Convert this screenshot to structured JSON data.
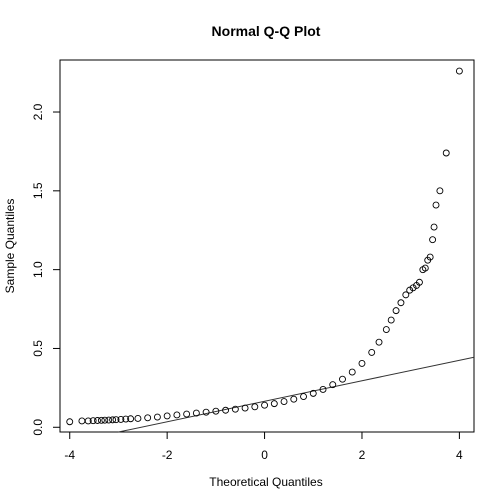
{
  "chart_data": {
    "type": "scatter",
    "title": "Normal Q-Q Plot",
    "xlabel": "Theoretical Quantiles",
    "ylabel": "Sample Quantiles",
    "xlim": [
      -4.2,
      4.3
    ],
    "ylim": [
      -0.03,
      2.33
    ],
    "x_ticks": [
      -4,
      -2,
      0,
      2,
      4
    ],
    "x_tick_labels": [
      "-4",
      "-2",
      "0",
      "2",
      "4"
    ],
    "y_ticks": [
      0.0,
      0.5,
      1.0,
      1.5,
      2.0
    ],
    "y_tick_labels": [
      "0.0",
      "0.5",
      "1.0",
      "1.5",
      "2.0"
    ],
    "grid": false,
    "legend": "none",
    "marker": "open-circle",
    "reference_line": {
      "intercept": 0.165,
      "slope": 0.065
    },
    "points": [
      [
        -4.0,
        0.035
      ],
      [
        -3.75,
        0.04
      ],
      [
        -3.62,
        0.04
      ],
      [
        -3.52,
        0.042
      ],
      [
        -3.43,
        0.043
      ],
      [
        -3.35,
        0.044
      ],
      [
        -3.28,
        0.045
      ],
      [
        -3.2,
        0.046
      ],
      [
        -3.12,
        0.047
      ],
      [
        -3.05,
        0.048
      ],
      [
        -2.95,
        0.05
      ],
      [
        -2.85,
        0.052
      ],
      [
        -2.75,
        0.054
      ],
      [
        -2.6,
        0.056
      ],
      [
        -2.4,
        0.06
      ],
      [
        -2.2,
        0.065
      ],
      [
        -2.0,
        0.072
      ],
      [
        -1.8,
        0.078
      ],
      [
        -1.6,
        0.084
      ],
      [
        -1.4,
        0.09
      ],
      [
        -1.2,
        0.096
      ],
      [
        -1.0,
        0.102
      ],
      [
        -0.8,
        0.108
      ],
      [
        -0.6,
        0.115
      ],
      [
        -0.4,
        0.122
      ],
      [
        -0.2,
        0.13
      ],
      [
        0.0,
        0.14
      ],
      [
        0.2,
        0.15
      ],
      [
        0.4,
        0.163
      ],
      [
        0.6,
        0.178
      ],
      [
        0.8,
        0.195
      ],
      [
        1.0,
        0.215
      ],
      [
        1.2,
        0.24
      ],
      [
        1.4,
        0.27
      ],
      [
        1.6,
        0.305
      ],
      [
        1.8,
        0.35
      ],
      [
        2.0,
        0.405
      ],
      [
        2.2,
        0.475
      ],
      [
        2.35,
        0.54
      ],
      [
        2.5,
        0.62
      ],
      [
        2.6,
        0.68
      ],
      [
        2.7,
        0.74
      ],
      [
        2.8,
        0.79
      ],
      [
        2.9,
        0.84
      ],
      [
        2.98,
        0.87
      ],
      [
        3.05,
        0.885
      ],
      [
        3.12,
        0.9
      ],
      [
        3.18,
        0.92
      ],
      [
        3.25,
        1.0
      ],
      [
        3.3,
        1.01
      ],
      [
        3.35,
        1.06
      ],
      [
        3.4,
        1.08
      ],
      [
        3.45,
        1.19
      ],
      [
        3.48,
        1.27
      ],
      [
        3.52,
        1.41
      ],
      [
        3.6,
        1.5
      ],
      [
        3.73,
        1.74
      ],
      [
        4.0,
        2.26
      ]
    ]
  }
}
